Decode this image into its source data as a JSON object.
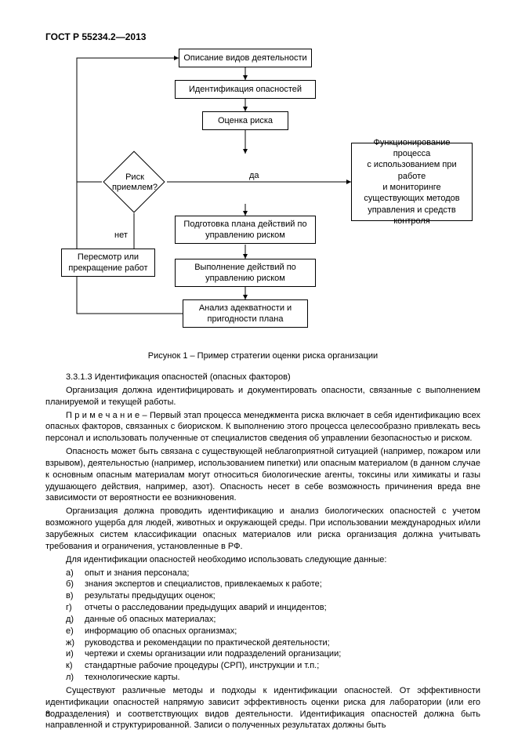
{
  "header": "ГОСТ Р 55234.2—2013",
  "flow": {
    "b1": "Описание видов деятельности",
    "b2": "Идентификация опасностей",
    "b3": "Оценка риска",
    "diamond": "Риск\nприемлем?",
    "yes": "да",
    "no": "нет",
    "b4": "Подготовка плана действий по\nуправлению риском",
    "b5": "Выполнение действий по\nуправлению риском",
    "b6": "Анализ адекватности и\nпригодности плана",
    "left": "Пересмотр или\nпрекращение работ",
    "right": "Функционирование процесса\nс использованием при работе\nи мониторинге\nсуществующих методов\nуправления и средств\nконтроля"
  },
  "caption": "Рисунок 1 – Пример стратегии оценки риска организации",
  "sec_num": "3.3.1.3 Идентификация опасностей (опасных факторов)",
  "p1": "Организация  должна  идентифицировать  и  документировать  опасности,  связанные  с выполнением планируемой и текущей работы.",
  "p2": "П р и м е ч а н и е – Первый этап процесса менеджмента риска включает в себя идентификацию всех опасных факторов, связанных с биориском. К выполнению этого процесса целесообразно привлекать весь персонал и использовать полученные от специалистов сведения об управлении безопасностью и риском.",
  "p3": "Опасность может быть связана с существующей неблагоприятной ситуацией (например, пожаром или взрывом), деятельностью (например, использованием пипетки) или опасным материалом (в данном случае к основным опасным материалам могут относиться биологические агенты, токсины или химикаты и газы удушающего действия, например, азот). Опасность несет в себе возможность причинения вреда вне зависимости от вероятности ее возникновения.",
  "p4": "Организация должна проводить идентификацию и анализ биологических опасностей с учетом возможного ущерба для людей, животных и окружающей среды. При использовании международных и/или зарубежных систем классификации опасных материалов или риска организация должна учитывать требования и ограничения, установленные в РФ.",
  "p5": "Для идентификации опасностей необходимо использовать следующие данные:",
  "list": [
    {
      "l": "а)",
      "t": "опыт и знания персонала;"
    },
    {
      "l": "б)",
      "t": "знания экспертов и специалистов, привлекаемых к работе;"
    },
    {
      "l": "в)",
      "t": "результаты предыдущих оценок;"
    },
    {
      "l": "г)",
      "t": "отчеты о расследовании предыдущих аварий и инцидентов;"
    },
    {
      "l": "д)",
      "t": "данные об опасных материалах;"
    },
    {
      "l": "е)",
      "t": "информацию об опасных организмах;"
    },
    {
      "l": "ж)",
      "t": "руководства и рекомендации по практической деятельности;"
    },
    {
      "l": "и)",
      "t": "чертежи и схемы организации или подразделений организации;"
    },
    {
      "l": "к)",
      "t": "стандартные рабочие процедуры (СРП), инструкции и т.п.;"
    },
    {
      "l": "л)",
      "t": "технологические карты."
    }
  ],
  "p6": "Существуют различные методы и подходы к идентификации опасностей. От эффективности идентификации опасностей напрямую зависит эффективность оценки риска для лаборатории (или его подразделения) и соответствующих видов деятельности. Идентификация опасностей должна быть направленной  и  структурированной.  Записи  о  полученных  результатах  должны  быть",
  "pagenum": "8"
}
